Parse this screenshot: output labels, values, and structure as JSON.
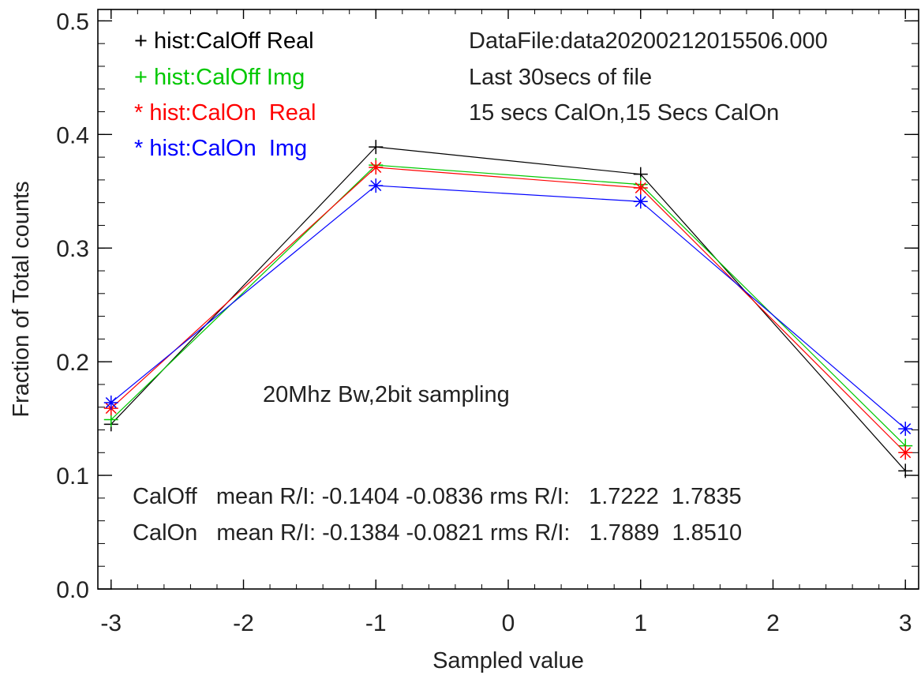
{
  "chart_data": {
    "type": "line",
    "title": "",
    "xlabel": "Sampled value",
    "ylabel": "Fraction of Total counts",
    "xlim": [
      -3.1,
      3.1
    ],
    "ylim": [
      0.0,
      0.51
    ],
    "x_ticks": [
      -3,
      -2,
      -1,
      0,
      1,
      2,
      3
    ],
    "x_tick_labels": [
      "-3",
      "-2",
      "-1",
      "0",
      "1",
      "2",
      "3"
    ],
    "y_ticks": [
      0.0,
      0.1,
      0.2,
      0.3,
      0.4,
      0.5
    ],
    "y_tick_labels": [
      "0.0",
      "0.1",
      "0.2",
      "0.3",
      "0.4",
      "0.5"
    ],
    "grid": false,
    "legend_position": "top-left",
    "x": [
      -3,
      -1,
      1,
      3
    ],
    "series": [
      {
        "name": "hist:CalOff Real",
        "legend_text": "+ hist:CalOff Real",
        "marker": "plus",
        "color": "#000000",
        "values": [
          0.145,
          0.389,
          0.365,
          0.104
        ]
      },
      {
        "name": "hist:CalOff Img",
        "legend_text": "+ hist:CalOff Img",
        "marker": "plus",
        "color": "#00c800",
        "values": [
          0.149,
          0.373,
          0.356,
          0.126
        ]
      },
      {
        "name": "hist:CalOn  Real",
        "legend_text": "* hist:CalOn  Real",
        "marker": "asterisk",
        "color": "#ff0000",
        "values": [
          0.159,
          0.371,
          0.353,
          0.12
        ]
      },
      {
        "name": "hist:CalOn  Img",
        "legend_text": "* hist:CalOn  Img",
        "marker": "asterisk",
        "color": "#0000ff",
        "values": [
          0.164,
          0.355,
          0.341,
          0.141
        ]
      }
    ],
    "annotations": {
      "datafile": "DataFile:data20200212015506.000",
      "window": "Last 30secs of file",
      "cal_note": "15 secs CalOn,15 Secs CalOn",
      "bandwidth": "20Mhz Bw,2bit sampling",
      "caloff_stats": "CalOff   mean R/I: -0.1404 -0.0836 rms R/I:   1.7222  1.7835",
      "calon_stats": "CalOn   mean R/I: -0.1384 -0.0821 rms R/I:   1.7889  1.8510"
    }
  }
}
